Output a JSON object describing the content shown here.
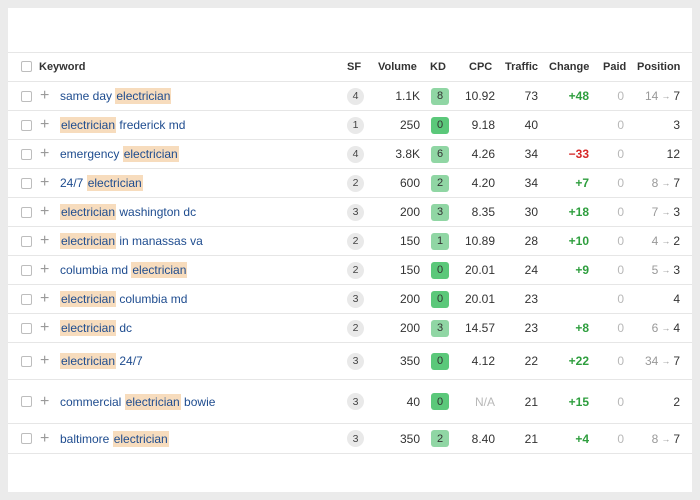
{
  "columns": {
    "keyword": "Keyword",
    "sf": "SF",
    "volume": "Volume",
    "kd": "KD",
    "cpc": "CPC",
    "traffic": "Traffic",
    "change": "Change",
    "paid": "Paid",
    "position": "Position"
  },
  "highlight_term": "electrician",
  "rows": [
    {
      "pre": "same day ",
      "hl": "electrician",
      "post": "",
      "sf": "4",
      "volume": "1.1K",
      "kd": "8",
      "cpc": "10.92",
      "traffic": "73",
      "change": "+48",
      "paid": "0",
      "pos_prev": "14",
      "pos_cur": "7"
    },
    {
      "pre": "",
      "hl": "electrician",
      "post": " frederick md",
      "sf": "1",
      "volume": "250",
      "kd": "0",
      "cpc": "9.18",
      "traffic": "40",
      "change": "",
      "paid": "0",
      "pos_prev": "",
      "pos_cur": "3"
    },
    {
      "pre": "emergency ",
      "hl": "electrician",
      "post": "",
      "sf": "4",
      "volume": "3.8K",
      "kd": "6",
      "cpc": "4.26",
      "traffic": "34",
      "change": "−33",
      "paid": "0",
      "pos_prev": "",
      "pos_cur": "12"
    },
    {
      "pre": "24/7 ",
      "hl": "electrician",
      "post": "",
      "sf": "2",
      "volume": "600",
      "kd": "2",
      "cpc": "4.20",
      "traffic": "34",
      "change": "+7",
      "paid": "0",
      "pos_prev": "8",
      "pos_cur": "7"
    },
    {
      "pre": "",
      "hl": "electrician",
      "post": " washington dc",
      "sf": "3",
      "volume": "200",
      "kd": "3",
      "cpc": "8.35",
      "traffic": "30",
      "change": "+18",
      "paid": "0",
      "pos_prev": "7",
      "pos_cur": "3"
    },
    {
      "pre": "",
      "hl": "electrician",
      "post": " in manassas va",
      "sf": "2",
      "volume": "150",
      "kd": "1",
      "cpc": "10.89",
      "traffic": "28",
      "change": "+10",
      "paid": "0",
      "pos_prev": "4",
      "pos_cur": "2"
    },
    {
      "pre": "columbia md ",
      "hl": "electrician",
      "post": "",
      "sf": "2",
      "volume": "150",
      "kd": "0",
      "cpc": "20.01",
      "traffic": "24",
      "change": "+9",
      "paid": "0",
      "pos_prev": "5",
      "pos_cur": "3"
    },
    {
      "pre": "",
      "hl": "electrician",
      "post": " columbia md",
      "sf": "3",
      "volume": "200",
      "kd": "0",
      "cpc": "20.01",
      "traffic": "23",
      "change": "",
      "paid": "0",
      "pos_prev": "",
      "pos_cur": "4"
    },
    {
      "pre": "",
      "hl": "electrician",
      "post": " dc",
      "sf": "2",
      "volume": "200",
      "kd": "3",
      "cpc": "14.57",
      "traffic": "23",
      "change": "+8",
      "paid": "0",
      "pos_prev": "6",
      "pos_cur": "4"
    },
    {
      "pre": "",
      "hl": "electrician",
      "post": " 24/7",
      "sf": "3",
      "volume": "350",
      "kd": "0",
      "cpc": "4.12",
      "traffic": "22",
      "change": "+22",
      "paid": "0",
      "pos_prev": "34",
      "pos_cur": "7"
    },
    {
      "pre": "commercial ",
      "hl": "electrician",
      "post": " bowie",
      "sf": "3",
      "volume": "40",
      "kd": "0",
      "cpc": "N/A",
      "traffic": "21",
      "change": "+15",
      "paid": "0",
      "pos_prev": "",
      "pos_cur": "2"
    },
    {
      "pre": "baltimore ",
      "hl": "electrician",
      "post": "",
      "sf": "3",
      "volume": "350",
      "kd": "2",
      "cpc": "8.40",
      "traffic": "21",
      "change": "+4",
      "paid": "0",
      "pos_prev": "8",
      "pos_cur": "7"
    }
  ],
  "colors": {
    "highlight": "#f7dcbd",
    "link": "#1e4c8f",
    "positive": "#2e9e3e",
    "negative": "#d62828",
    "kd_low": "#5bc87a",
    "kd_mid": "#90d6a4"
  },
  "icons": {
    "add": "plus-icon",
    "position_arrow": "arrow-right-icon"
  }
}
